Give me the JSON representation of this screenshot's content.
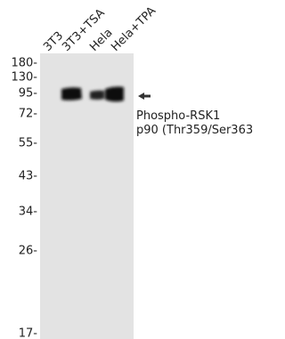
{
  "lanes": [
    "3T3",
    "3T3+TSA",
    "Hela",
    "Hela+TPA"
  ],
  "markers": [
    "180-",
    "130-",
    "95-",
    "72-",
    "55-",
    "43-",
    "34-",
    "26-",
    "17-"
  ],
  "target": {
    "name": "Phospho-RSK1",
    "detail": "p90 (Thr359/Ser363)"
  }
}
